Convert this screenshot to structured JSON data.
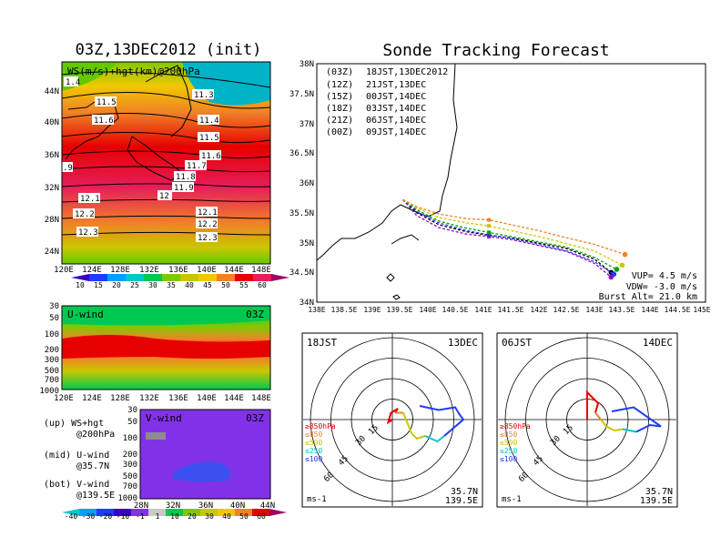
{
  "left_title": "03Z,13DEC2012 (init)",
  "right_title": "Sonde Tracking Forecast",
  "upper_map": {
    "label": "WS(m/s)+hgt(km)@200hPa",
    "lat_labels": [
      "44N",
      "40N",
      "36N",
      "32N",
      "28N",
      "24N"
    ],
    "lon_labels": [
      "120E",
      "124E",
      "128E",
      "132E",
      "136E",
      "140E",
      "144E",
      "148E"
    ],
    "contour_labels": [
      "1.4",
      "11.3",
      "11.5",
      "11.4",
      "11.6",
      "11.5",
      "11.6",
      "11.7",
      ".9",
      "11.8",
      "11.9",
      "12",
      "12.1",
      "12.1",
      "12.2",
      "12.2",
      "12.3",
      "12.3"
    ],
    "colorbar_ticks": [
      "10",
      "15",
      "20",
      "25",
      "30",
      "35",
      "40",
      "45",
      "50",
      "55",
      "60"
    ]
  },
  "u_wind": {
    "label": "U-wind",
    "time": "03Z",
    "pressure_labels": [
      "30",
      "50",
      "100",
      "200",
      "300",
      "500",
      "700",
      "1000"
    ],
    "lon_labels": [
      "120E",
      "124E",
      "128E",
      "132E",
      "136E",
      "140E",
      "144E",
      "148E"
    ]
  },
  "v_wind": {
    "label": "V-wind",
    "time": "03Z",
    "pressure_labels": [
      "30",
      "50",
      "100",
      "200",
      "300",
      "500",
      "700",
      "1000"
    ],
    "lat_labels": [
      "28N",
      "32N",
      "36N",
      "40N",
      "44N"
    ],
    "colorbar_ticks": [
      "-40",
      "-30",
      "-20",
      "-10",
      "-1",
      "1",
      "10",
      "20",
      "30",
      "40",
      "50",
      "60"
    ]
  },
  "legend_notes": [
    {
      "line1": "(up) WS+hgt",
      "line2": "@200hPa"
    },
    {
      "line1": "(mid) U-wind",
      "line2": "@35.7N"
    },
    {
      "line1": "(bot) V-wind",
      "line2": "@139.5E"
    }
  ],
  "track_map": {
    "lat_labels": [
      "38N",
      "37.5N",
      "37N",
      "36.5N",
      "36N",
      "35.5N",
      "35N",
      "34.5N",
      "34N"
    ],
    "lon_labels": [
      "138E",
      "138.5E",
      "139E",
      "139.5E",
      "140E",
      "140.5E",
      "141E",
      "141.5E",
      "142E",
      "142.5E",
      "143E",
      "143.5E",
      "144E",
      "144.5E",
      "145E"
    ],
    "launches": [
      {
        "utc": "(03Z)",
        "local": "18JST,13DEC2012",
        "color": "#000000"
      },
      {
        "utc": "(12Z)",
        "local": "21JST,13DEC",
        "color": "#9900cc"
      },
      {
        "utc": "(15Z)",
        "local": "00JST,14DEC",
        "color": "#1e3cff"
      },
      {
        "utc": "(18Z)",
        "local": "03JST,14DEC",
        "color": "#00a000"
      },
      {
        "utc": "(21Z)",
        "local": "06JST,14DEC",
        "color": "#c8c800"
      },
      {
        "utc": "(00Z)",
        "local": "09JST,14DEC",
        "color": "#f08228"
      }
    ],
    "params": [
      "VUP= 4.5 m/s",
      "VDW= -3.0 m/s",
      "Burst Alt= 21.0 km"
    ]
  },
  "hodograph_left": {
    "time": "18JST",
    "date": "13DEC",
    "ring_labels": [
      "15",
      "30",
      "45",
      "60"
    ],
    "levels": [
      "≥850hPa",
      "≤850",
      "≤500",
      "≤250",
      "≤100"
    ],
    "level_colors": [
      "#e60000",
      "#f08228",
      "#c8c800",
      "#00c8c8",
      "#1e3cff"
    ],
    "unit": "ms-1",
    "loc1": "35.7N",
    "loc2": "139.5E"
  },
  "hodograph_right": {
    "time": "06JST",
    "date": "14DEC",
    "ring_labels": [
      "15",
      "30",
      "45",
      "60"
    ],
    "levels": [
      "≥850hPa",
      "≤850",
      "≤500",
      "≤250",
      "≤100"
    ],
    "level_colors": [
      "#e60000",
      "#f08228",
      "#c8c800",
      "#00c8c8",
      "#1e3cff"
    ],
    "unit": "ms-1",
    "loc1": "35.7N",
    "loc2": "139.5E"
  },
  "chart_data": [
    {
      "type": "line",
      "title": "Sonde Tracking Forecast",
      "xlabel": "",
      "ylabel": "",
      "xlim": [
        138,
        145
      ],
      "ylim": [
        34,
        38
      ],
      "series": [
        {
          "name": "(03Z) 18JST,13DEC2012",
          "x": [
            139.55,
            139.8,
            140.2,
            140.7,
            141.1,
            141.5,
            142.0,
            142.5,
            143.0,
            143.3
          ],
          "y": [
            35.72,
            35.5,
            35.3,
            35.18,
            35.12,
            35.08,
            34.99,
            34.9,
            34.72,
            34.5
          ]
        },
        {
          "name": "(12Z) 21JST,13DEC",
          "x": [
            139.55,
            139.8,
            140.2,
            140.7,
            141.1,
            141.5,
            142.0,
            142.5,
            143.0,
            143.3
          ],
          "y": [
            35.72,
            35.45,
            35.25,
            35.14,
            35.1,
            35.05,
            34.95,
            34.85,
            34.65,
            34.42
          ]
        },
        {
          "name": "(15Z) 00JST,14DEC",
          "x": [
            139.55,
            139.8,
            140.2,
            140.7,
            141.1,
            141.5,
            142.0,
            142.5,
            143.0,
            143.35
          ],
          "y": [
            35.72,
            35.52,
            35.33,
            35.2,
            35.13,
            35.07,
            34.97,
            34.86,
            34.68,
            34.47
          ]
        },
        {
          "name": "(18Z) 03JST,14DEC",
          "x": [
            139.55,
            139.8,
            140.2,
            140.7,
            141.1,
            141.5,
            142.0,
            142.5,
            143.0,
            143.4
          ],
          "y": [
            35.72,
            35.55,
            35.36,
            35.24,
            35.17,
            35.1,
            35.01,
            34.92,
            34.75,
            34.55
          ]
        },
        {
          "name": "(21Z) 06JST,14DEC",
          "x": [
            139.55,
            139.8,
            140.2,
            140.7,
            141.1,
            141.5,
            142.0,
            142.5,
            143.0,
            143.5
          ],
          "y": [
            35.72,
            35.58,
            35.42,
            35.33,
            35.28,
            35.2,
            35.1,
            34.98,
            34.86,
            34.62
          ]
        },
        {
          "name": "(00Z) 09JST,14DEC",
          "x": [
            139.55,
            139.8,
            140.2,
            140.7,
            141.1,
            141.5,
            142.0,
            142.5,
            143.0,
            143.55
          ],
          "y": [
            35.72,
            35.6,
            35.48,
            35.4,
            35.38,
            35.3,
            35.2,
            35.08,
            34.97,
            34.8
          ]
        }
      ]
    },
    {
      "type": "line",
      "title": "18JST 13DEC",
      "xlabel": "",
      "ylabel": "",
      "series": [
        {
          "name": "≥850hPa",
          "x": [
            0,
            -3,
            -1,
            4,
            2
          ],
          "y": [
            0,
            -2,
            5,
            8,
            5
          ]
        },
        {
          "name": "≤850",
          "x": [
            2,
            8
          ],
          "y": [
            5,
            5
          ]
        },
        {
          "name": "≤500",
          "x": [
            8,
            14,
            18,
            24
          ],
          "y": [
            5,
            -10,
            -14,
            -12
          ]
        },
        {
          "name": "≤250",
          "x": [
            24,
            33,
            38
          ],
          "y": [
            -12,
            -16,
            -12
          ]
        },
        {
          "name": "≤100",
          "x": [
            38,
            52,
            49,
            46,
            34,
            20
          ],
          "y": [
            -12,
            0,
            4,
            9,
            7,
            10
          ]
        }
      ]
    },
    {
      "type": "line",
      "title": "06JST 14DEC",
      "xlabel": "",
      "ylabel": "",
      "series": [
        {
          "name": "≥850hPa",
          "x": [
            0,
            0,
            3,
            8,
            6
          ],
          "y": [
            0,
            20,
            17,
            12,
            5
          ]
        },
        {
          "name": "≤850",
          "x": [
            6,
            10
          ],
          "y": [
            5,
            0
          ]
        },
        {
          "name": "≤500",
          "x": [
            10,
            14,
            20,
            26
          ],
          "y": [
            0,
            -5,
            -8,
            -7
          ]
        },
        {
          "name": "≤250",
          "x": [
            26,
            36
          ],
          "y": [
            -7,
            -9
          ]
        },
        {
          "name": "≤100",
          "x": [
            36,
            46,
            54,
            34,
            18
          ],
          "y": [
            -9,
            -4,
            -5,
            9,
            6
          ]
        }
      ]
    }
  ]
}
